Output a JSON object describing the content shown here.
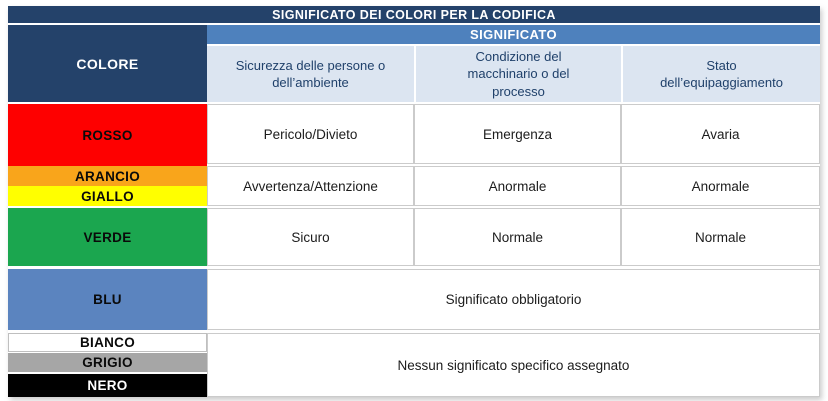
{
  "table": {
    "title": "SIGNIFICATO DEI COLORI PER LA CODIFICA",
    "colore_label": "COLORE",
    "significato_label": "SIGNIFICATO",
    "column_headers": [
      "Sicurezza delle persone o dell’ambiente",
      "Condizione del macchinario o del processo",
      "Stato dell’equipaggiamento"
    ],
    "rows": {
      "rosso": {
        "label": "ROSSO",
        "cells": [
          "Pericolo/Divieto",
          "Emergenza",
          "Avaria"
        ]
      },
      "arancio": {
        "label": "ARANCIO"
      },
      "giallo": {
        "label": "GIALLO"
      },
      "arancio_giallo_cells": [
        "Avvertenza/Attenzione",
        "Anormale",
        "Anormale"
      ],
      "verde": {
        "label": "VERDE",
        "cells": [
          "Sicuro",
          "Normale",
          "Normale"
        ]
      },
      "blu": {
        "label": "BLU",
        "merged_cell": "Significato obbligatorio"
      },
      "bianco": {
        "label": "BIANCO"
      },
      "grigio": {
        "label": "GRIGIO"
      },
      "nero": {
        "label": "NERO"
      },
      "bianco_grigio_nero_merged_cell": "Nessun significato specifico assegnato"
    },
    "colors": {
      "header_navy": "#24426A",
      "significato_bar_blue": "#4E81BD",
      "column_header_bg": "#DCE5F1",
      "rosso": "#FE0000",
      "arancio": "#F9A51B",
      "giallo": "#FFFF00",
      "verde": "#1BA64F",
      "blu": "#5B84BF",
      "bianco": "#FFFFFF",
      "grigio": "#A6A6A6",
      "nero": "#000000"
    }
  }
}
